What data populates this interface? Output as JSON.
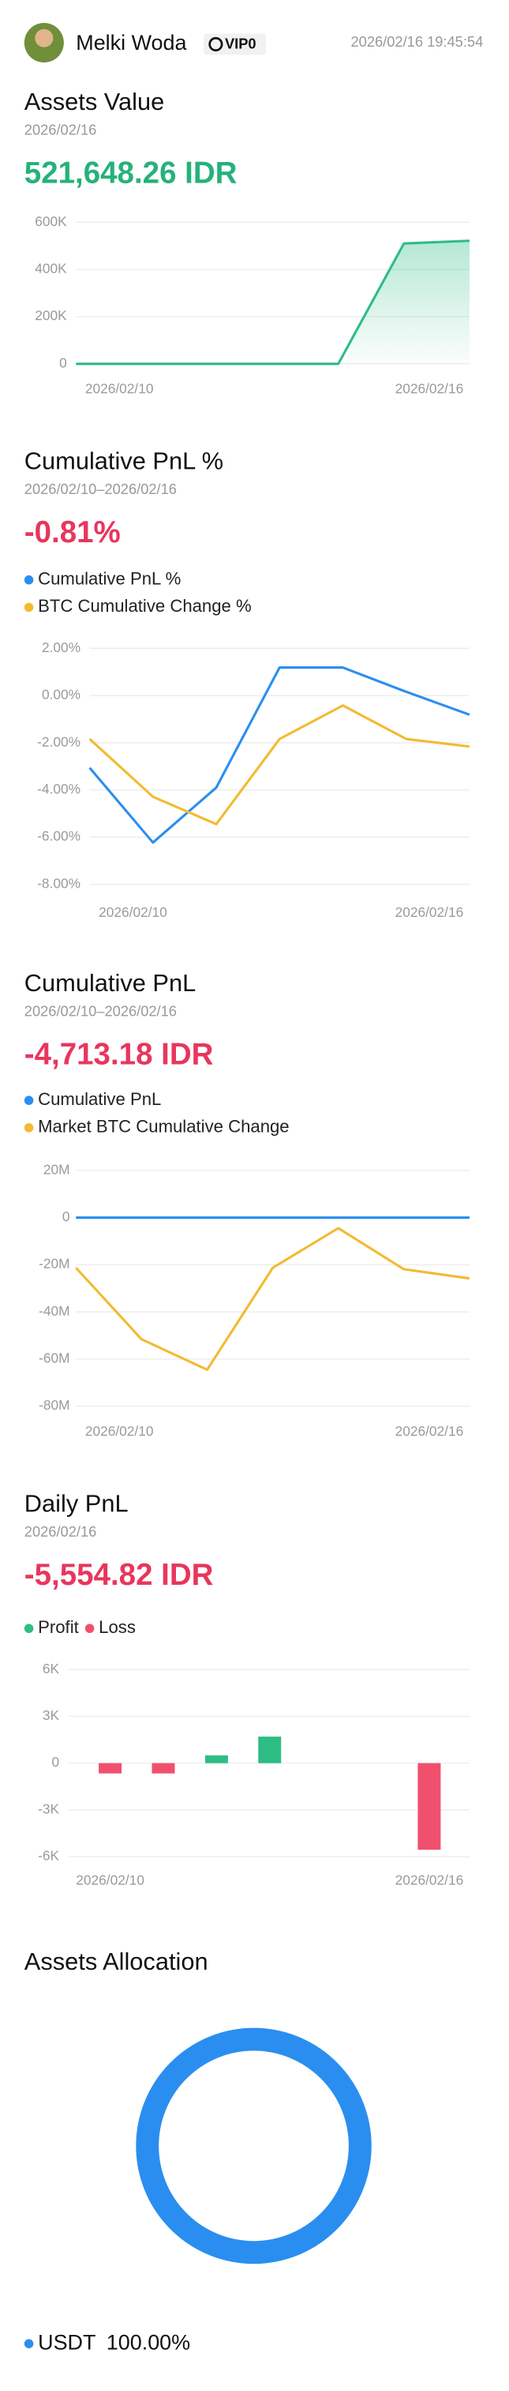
{
  "header": {
    "name": "Melki Woda",
    "badge": "VIP0",
    "time": "2026/02/16 19:45:54"
  },
  "chart_data": [
    {
      "type": "area",
      "title": "Assets Value",
      "subtitle": "2026/02/16",
      "summary": "521,648.26 IDR",
      "summary_color": "#25b27a",
      "categories": [
        "2026/02/10",
        null,
        null,
        null,
        null,
        null,
        "2026/02/16"
      ],
      "values": [
        0,
        0,
        0,
        0,
        0,
        510000,
        521648.26
      ],
      "color": "#2dbd85",
      "ylim": [
        0,
        600000
      ],
      "yticks": [
        0,
        {
          "value": 200000,
          "label": "200K"
        },
        {
          "value": 400000,
          "label": "400K"
        },
        {
          "value": 600000,
          "label": "600K"
        }
      ],
      "grid": true
    },
    {
      "type": "line",
      "title": "Cumulative PnL %",
      "subtitle": "2026/02/10–2026/02/16",
      "summary": "-0.81%",
      "summary_color": "#e8365d",
      "categories": [
        "2026/02/10",
        null,
        null,
        null,
        null,
        null,
        "2026/02/16"
      ],
      "series": [
        {
          "name": "Cumulative PnL %",
          "color": "#2a8ef0",
          "values": [
            -3.06,
            -6.23,
            -3.9,
            1.19,
            1.19,
            0.16,
            -0.81
          ]
        },
        {
          "name": "BTC Cumulative Change %",
          "color": "#f3ba2f",
          "values": [
            -1.84,
            -4.29,
            -5.45,
            -1.84,
            -0.42,
            -1.84,
            -2.16
          ]
        }
      ],
      "ylim": [
        -8,
        2
      ],
      "yticks": [
        {
          "value": -8,
          "label": "-8.00%"
        },
        {
          "value": -6,
          "label": "-6.00%"
        },
        {
          "value": -4,
          "label": "-4.00%"
        },
        {
          "value": -2,
          "label": "-2.00%"
        },
        {
          "value": 0,
          "label": "0.00%"
        },
        {
          "value": 2,
          "label": "2.00%"
        }
      ],
      "grid": true
    },
    {
      "type": "line",
      "title": "Cumulative PnL",
      "subtitle": "2026/02/10–2026/02/16",
      "summary": "-4,713.18 IDR",
      "summary_color": "#e8365d",
      "categories": [
        "2026/02/10",
        null,
        null,
        null,
        null,
        null,
        "2026/02/16"
      ],
      "series": [
        {
          "name": "Cumulative PnL",
          "color": "#2a8ef0",
          "values": [
            0,
            0,
            0,
            0,
            0,
            0,
            -4713.18
          ]
        },
        {
          "name": "Market BTC Cumulative Change",
          "color": "#f3ba2f",
          "values": [
            -21300000,
            -51600000,
            -64500000,
            -21300000,
            -4500000,
            -21900000,
            -25800000
          ]
        }
      ],
      "ylim": [
        -80000000,
        20000000
      ],
      "yticks": [
        {
          "value": -80000000,
          "label": "-80M"
        },
        {
          "value": -60000000,
          "label": "-60M"
        },
        {
          "value": -40000000,
          "label": "-40M"
        },
        {
          "value": -20000000,
          "label": "-20M"
        },
        0,
        {
          "value": 20000000,
          "label": "20M"
        }
      ],
      "grid": true
    },
    {
      "type": "bar",
      "title": "Daily PnL",
      "subtitle": "2026/02/16",
      "summary": "-5,554.82 IDR",
      "summary_color": "#e8365d",
      "categories": [
        "2026/02/10",
        null,
        null,
        null,
        null,
        null,
        "2026/02/16"
      ],
      "values": [
        -660,
        -660,
        500,
        1700,
        0,
        0,
        -5554.82
      ],
      "legend": [
        {
          "name": "Profit",
          "color": "#2dbd85"
        },
        {
          "name": "Loss",
          "color": "#f0506e"
        }
      ],
      "ylim": [
        -6000,
        6000
      ],
      "yticks": [
        {
          "value": -6000,
          "label": "-6K"
        },
        {
          "value": -3000,
          "label": "-3K"
        },
        0,
        {
          "value": 3000,
          "label": "3K"
        },
        {
          "value": 6000,
          "label": "6K"
        }
      ],
      "grid": true
    },
    {
      "type": "donut",
      "title": "Assets Allocation",
      "categories": [
        "USDT"
      ],
      "values": [
        100
      ],
      "value_labels": [
        "100.00%"
      ],
      "colors": [
        "#2a8ef0"
      ]
    }
  ]
}
